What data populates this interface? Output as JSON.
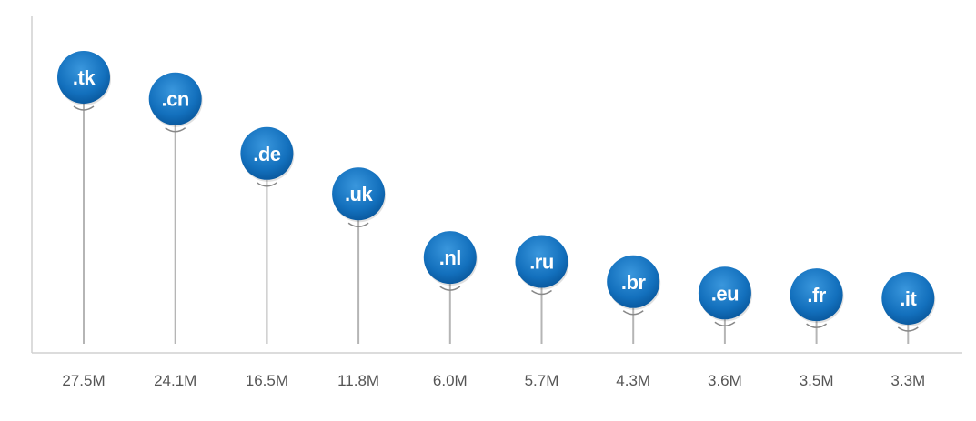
{
  "chart_data": {
    "type": "bar",
    "style": "lollipop-pins",
    "categories": [
      ".tk",
      ".cn",
      ".de",
      ".uk",
      ".nl",
      ".ru",
      ".br",
      ".eu",
      ".fr",
      ".it"
    ],
    "values": [
      27.5,
      24.1,
      16.5,
      11.8,
      6.0,
      5.7,
      4.3,
      3.6,
      3.5,
      3.3
    ],
    "value_labels": [
      "27.5M",
      "24.1M",
      "16.5M",
      "11.8M",
      "6.0M",
      "5.7M",
      "4.3M",
      "3.6M",
      "3.5M",
      "3.3M"
    ],
    "unit": "M",
    "title": "",
    "xlabel": "",
    "ylabel": "",
    "grid": false,
    "colors": {
      "pin_fill": "#0f6cb8",
      "pin_highlight": "#3a97dd",
      "stem": "#b5b5b5",
      "axis": "#cccccc",
      "value_text": "#555555",
      "pin_text": "#ffffff"
    }
  }
}
